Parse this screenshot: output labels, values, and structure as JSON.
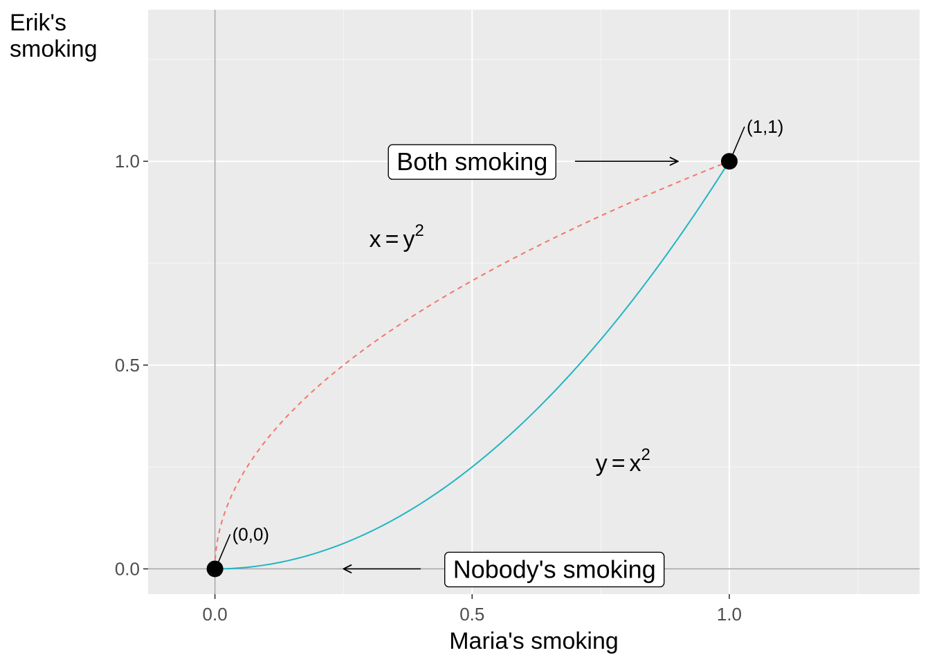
{
  "chart_data": {
    "type": "line",
    "xlabel": "Maria's smoking",
    "ylabel_lines": [
      "Erik's",
      "smoking"
    ],
    "xlim": [
      -0.13,
      1.37
    ],
    "ylim": [
      -0.062,
      1.372
    ],
    "x_ticks": [
      0.0,
      0.5,
      1.0
    ],
    "x_tick_labels": [
      "0.0",
      "0.5",
      "1.0"
    ],
    "y_ticks": [
      0.0,
      0.5,
      1.0
    ],
    "y_tick_labels": [
      "0.0",
      "0.5",
      "1.0"
    ],
    "grid": true,
    "reference_lines": [
      {
        "axis": "x",
        "value": 0
      },
      {
        "axis": "y",
        "value": 0
      }
    ],
    "series": [
      {
        "equation": "y = x^2",
        "style": "solid",
        "color": "#1fb5c3",
        "x": [
          0,
          0.1,
          0.2,
          0.3,
          0.4,
          0.5,
          0.6,
          0.7,
          0.8,
          0.9,
          1.0
        ],
        "y": [
          0,
          0.01,
          0.04,
          0.09,
          0.16,
          0.25,
          0.36,
          0.49,
          0.64,
          0.81,
          1.0
        ]
      },
      {
        "equation": "x = y^2",
        "style": "dashed",
        "color": "#f2756a",
        "x": [
          0,
          0.01,
          0.04,
          0.09,
          0.16,
          0.25,
          0.36,
          0.49,
          0.64,
          0.81,
          1.0
        ],
        "y": [
          0,
          0.1,
          0.2,
          0.3,
          0.4,
          0.5,
          0.6,
          0.7,
          0.8,
          0.9,
          1.0
        ]
      }
    ],
    "points": [
      {
        "x": 0,
        "y": 0,
        "label": "(0,0)"
      },
      {
        "x": 1,
        "y": 1,
        "label": "(1,1)"
      }
    ],
    "curve_labels": [
      {
        "lhs": "x",
        "rhs": "y",
        "sup": "2",
        "x": 0.3,
        "y": 0.79
      },
      {
        "lhs": "y",
        "rhs": "x",
        "sup": "2",
        "x": 0.74,
        "y": 0.24
      }
    ],
    "boxed_labels": [
      {
        "text": "Both smoking",
        "x": 0.5,
        "y": 1.0,
        "arrow_from": [
          0.7,
          1.0
        ],
        "arrow_to": [
          0.9,
          1.0
        ]
      },
      {
        "text": "Nobody's smoking",
        "x": 0.66,
        "y": 0.0,
        "arrow_from": [
          0.4,
          0.0
        ],
        "arrow_to": [
          0.25,
          0.0
        ]
      }
    ]
  }
}
